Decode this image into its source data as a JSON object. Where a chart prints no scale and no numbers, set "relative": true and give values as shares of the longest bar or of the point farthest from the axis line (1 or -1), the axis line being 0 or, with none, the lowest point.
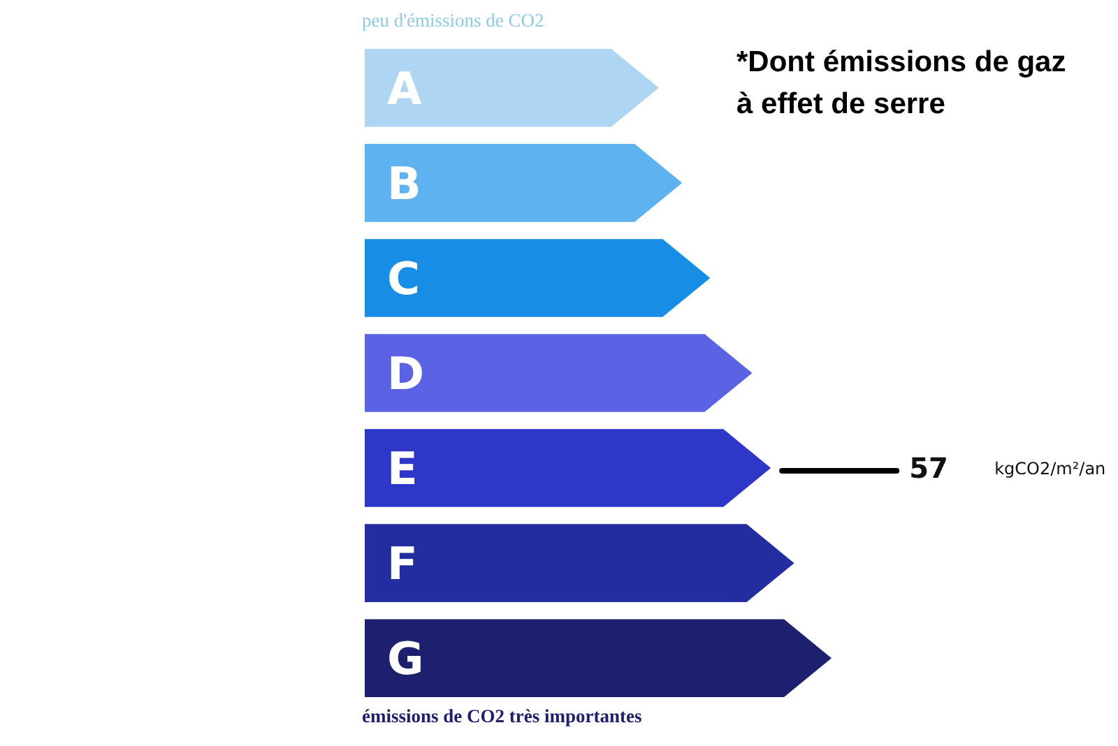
{
  "chart_data": {
    "type": "bar",
    "orientation": "horizontal",
    "relative": true,
    "title": "*Dont émissions de gaz à effet de serre",
    "categories": [
      "A",
      "B",
      "C",
      "D",
      "E",
      "F",
      "G"
    ],
    "values": [
      0.63,
      0.68,
      0.74,
      0.83,
      0.87,
      0.92,
      1
    ],
    "colors": [
      "#aed6f3",
      "#5fb2f0",
      "#178de6",
      "#5b63e4",
      "#2e37c8",
      "#242d9f",
      "#1c206e"
    ],
    "annotations": [
      "peu d'émissions de CO2",
      "émissions de CO2 très importantes",
      {
        "text": "57",
        "x": 0.87,
        "y": "E"
      },
      "kgCO2/m²/an"
    ]
  }
}
